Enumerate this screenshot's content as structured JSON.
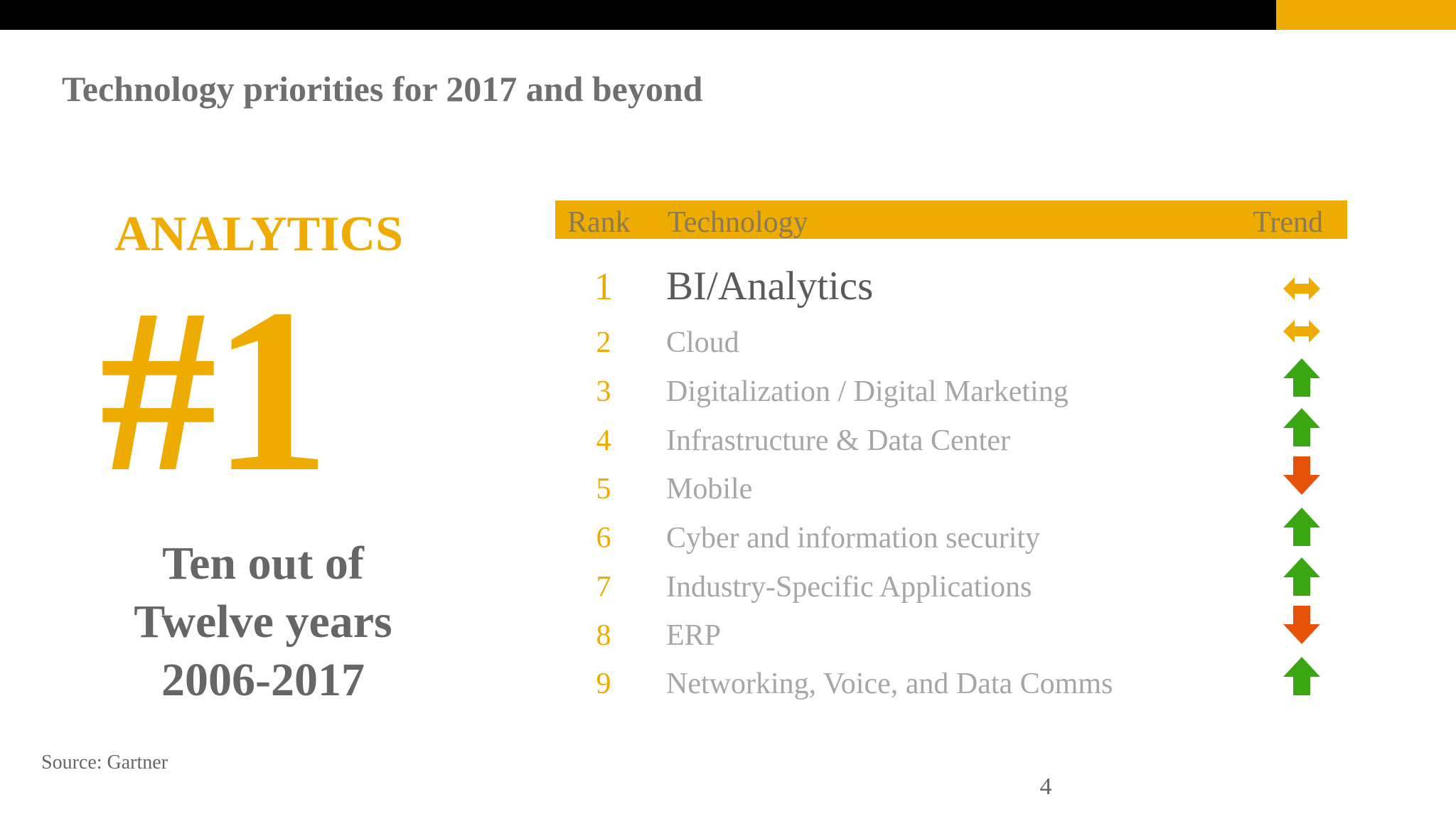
{
  "slide": {
    "title": "Technology priorities for 2017 and beyond",
    "page_number": "4",
    "source": "Source: Gartner"
  },
  "highlight": {
    "category": "ANALYTICS",
    "rank": "#1",
    "tagline_line1": "Ten out of",
    "tagline_line2": "Twelve years",
    "tagline_line3": "2006-2017"
  },
  "table": {
    "headers": {
      "rank": "Rank",
      "technology": "Technology",
      "trend": "Trend"
    },
    "rows": [
      {
        "rank": "1",
        "technology": "BI/Analytics",
        "trend": "steady"
      },
      {
        "rank": "2",
        "technology": "Cloud",
        "trend": "steady"
      },
      {
        "rank": "3",
        "technology": "Digitalization / Digital Marketing",
        "trend": "up"
      },
      {
        "rank": "4",
        "technology": "Infrastructure & Data Center",
        "trend": "up"
      },
      {
        "rank": "5",
        "technology": "Mobile",
        "trend": "down"
      },
      {
        "rank": "6",
        "technology": "Cyber and information security",
        "trend": "up"
      },
      {
        "rank": "7",
        "technology": "Industry-Specific Applications",
        "trend": "up"
      },
      {
        "rank": "8",
        "technology": "ERP",
        "trend": "down"
      },
      {
        "rank": "9",
        "technology": "Networking, Voice, and Data Comms",
        "trend": "up"
      }
    ]
  },
  "colors": {
    "accent": "#eeab00",
    "trend_up": "#3aa612",
    "trend_down": "#e5530a",
    "trend_steady": "#eeab00"
  }
}
